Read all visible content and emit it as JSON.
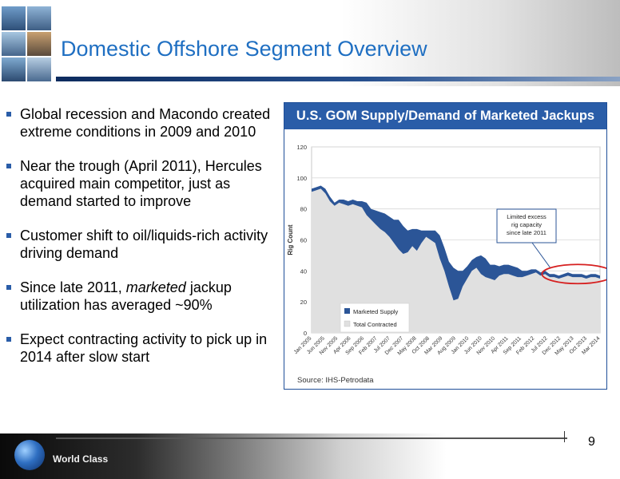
{
  "slide": {
    "title": "Domestic Offshore Segment Overview",
    "page_number": "9",
    "footer_tagline": "World Class"
  },
  "bullets": [
    {
      "text_before": "Global recession and Macondo created extreme conditions in 2009 and 2010",
      "emph": "",
      "text_after": ""
    },
    {
      "text_before": "Near the trough (April 2011), Hercules acquired main competitor, just as demand started to improve",
      "emph": "",
      "text_after": ""
    },
    {
      "text_before": "Customer shift to oil/liquids-rich activity driving demand",
      "emph": "",
      "text_after": ""
    },
    {
      "text_before": "Since late 2011, ",
      "emph": "marketed",
      "text_after": " jackup utilization has averaged ~90%"
    },
    {
      "text_before": "Expect contracting activity to pick up in 2014 after slow start",
      "emph": "",
      "text_after": ""
    }
  ],
  "chart_panel": {
    "header": "U.S. GOM Supply/Demand of Marketed Jackups",
    "source": "Source: IHS-Petrodata"
  },
  "chart_data": {
    "type": "area",
    "title": "",
    "xlabel": "",
    "ylabel": "Rig Count",
    "ylim": [
      0,
      120
    ],
    "yticks": [
      0,
      20,
      40,
      60,
      80,
      100,
      120
    ],
    "x_tick_labels": [
      "Jan 2005",
      "Jun 2005",
      "Nov 2005",
      "Apr 2006",
      "Sep 2006",
      "Feb 2007",
      "Jul 2007",
      "Dec 2007",
      "May 2008",
      "Oct 2008",
      "Mar 2009",
      "Aug 2009",
      "Jan 2010",
      "Jun 2010",
      "Nov 2010",
      "Apr 2011",
      "Sep 2011",
      "Feb 2012",
      "Jul 2012",
      "Dec 2012",
      "May 2013",
      "Oct 2013",
      "Mar 2014"
    ],
    "legend_position": "bottom-left inside plot",
    "annotation": {
      "text_lines": [
        "Limited excess",
        "rig capacity",
        "since late 2011"
      ],
      "anchor_label": "Jul 2012"
    },
    "highlight_ellipse": {
      "from_label": "Jul 2012",
      "to_label": "Mar 2014",
      "around_value": 38
    },
    "colors": {
      "supply": "#2b5597",
      "contracted": "#e0e0e0",
      "ellipse": "#d62020",
      "panel_header": "#2a5da8"
    },
    "series": [
      {
        "name": "Marketed Supply",
        "values": [
          93,
          94,
          95,
          93,
          88,
          84,
          86,
          86,
          85,
          86,
          85,
          85,
          84,
          80,
          79,
          78,
          77,
          75,
          73,
          73,
          69,
          66,
          67,
          67,
          66,
          66,
          66,
          66,
          63,
          55,
          46,
          42,
          40,
          40,
          43,
          47,
          49,
          50,
          48,
          44,
          44,
          43,
          44,
          44,
          43,
          42,
          40,
          40,
          41,
          41,
          39,
          40,
          38,
          38,
          37,
          38,
          39,
          38,
          38,
          38,
          37,
          38,
          38,
          37
        ]
      },
      {
        "name": "Total Contracted",
        "values": [
          91,
          92,
          93,
          90,
          85,
          82,
          84,
          83,
          82,
          83,
          82,
          81,
          76,
          73,
          70,
          67,
          65,
          62,
          58,
          54,
          51,
          52,
          56,
          53,
          58,
          62,
          60,
          58,
          48,
          40,
          30,
          21,
          22,
          30,
          35,
          40,
          42,
          38,
          36,
          35,
          34,
          37,
          38,
          38,
          37,
          36,
          36,
          37,
          38,
          39,
          37,
          38,
          36,
          36,
          35,
          36,
          37,
          36,
          36,
          36,
          35,
          36,
          36,
          35
        ]
      }
    ]
  }
}
